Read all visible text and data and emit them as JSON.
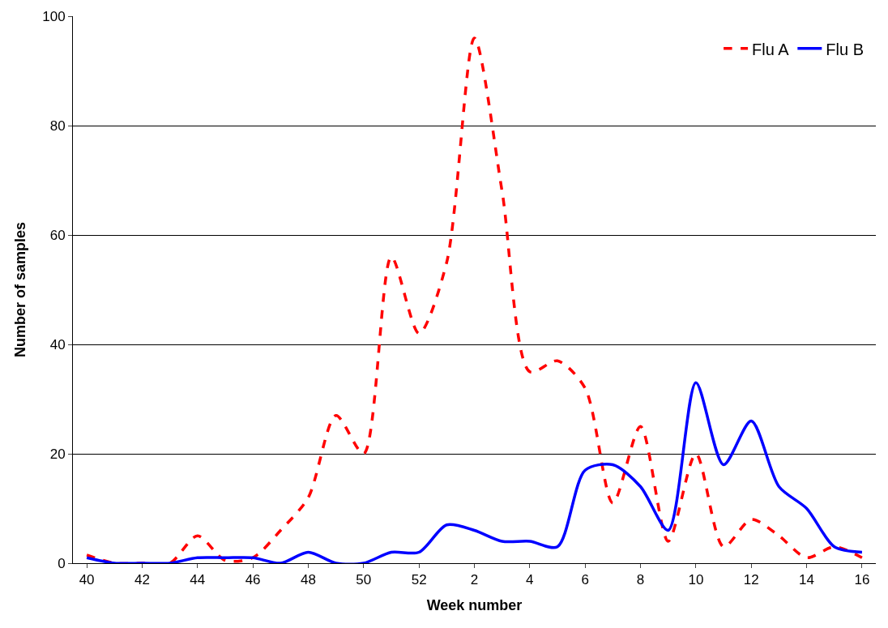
{
  "chart_data": {
    "type": "line",
    "xlabel": "Week number",
    "ylabel": "Number of samples",
    "categories": [
      "40",
      null,
      "42",
      null,
      "44",
      null,
      "46",
      null,
      "48",
      null,
      "50",
      null,
      "52",
      null,
      "2",
      null,
      "4",
      null,
      "6",
      null,
      "8",
      null,
      "10",
      null,
      "12",
      null,
      "14",
      null,
      "16"
    ],
    "series": [
      {
        "name": "Flu A",
        "color": "#ff0000",
        "line_style": "dashed",
        "values": [
          1.5,
          0,
          0,
          0,
          5,
          0.5,
          1,
          6,
          12,
          27,
          20,
          56,
          42,
          55,
          96,
          68,
          35,
          37,
          32,
          11,
          25,
          4,
          20,
          3,
          8,
          5,
          1,
          3,
          1
        ]
      },
      {
        "name": "Flu B",
        "color": "#0000ff",
        "line_style": "solid",
        "values": [
          1,
          0,
          0,
          0,
          1,
          1,
          1,
          0,
          2,
          0,
          0,
          2,
          2,
          7,
          6,
          4,
          4,
          3,
          17,
          18,
          14,
          6,
          33,
          18,
          26,
          14,
          10,
          3,
          2
        ]
      }
    ],
    "ylim": [
      0,
      100
    ],
    "yticks": [
      0,
      20,
      40,
      60,
      80,
      100
    ],
    "grid": "y",
    "legend": "top right",
    "marker": "none"
  }
}
